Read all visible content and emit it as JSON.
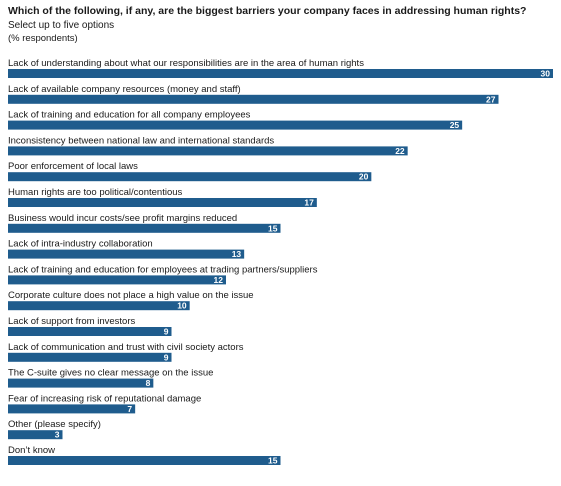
{
  "chart_data": {
    "type": "bar",
    "orientation": "horizontal",
    "title": "Which of the following, if any, are the biggest barriers your company faces in addressing human rights?",
    "subtitle": "Select up to five options",
    "note": "(% respondents)",
    "categories": [
      "Lack of understanding about what our responsibilities are in the area of human rights",
      "Lack of available company resources (money and staff)",
      "Lack of training and education for all company employees",
      "Inconsistency between national law and international standards",
      "Poor enforcement of local laws",
      "Human rights are too political/contentious",
      "Business would incur costs/see profit margins reduced",
      "Lack of intra-industry collaboration",
      "Lack of training and education for employees at trading partners/suppliers",
      "Corporate culture does not place a high value on the issue",
      "Lack of support from investors",
      "Lack of communication and trust with civil society actors",
      "The C-suite gives no clear message on the issue",
      "Fear of increasing risk of reputational damage",
      "Other (please specify)",
      "Don’t know"
    ],
    "values": [
      30,
      27,
      25,
      22,
      20,
      17,
      15,
      13,
      12,
      10,
      9,
      9,
      8,
      7,
      3,
      15
    ],
    "xlim": [
      0,
      30
    ],
    "grid": false,
    "legend": "none",
    "bar_color": "#1f5c8d",
    "value_label_color": "#ffffff"
  }
}
